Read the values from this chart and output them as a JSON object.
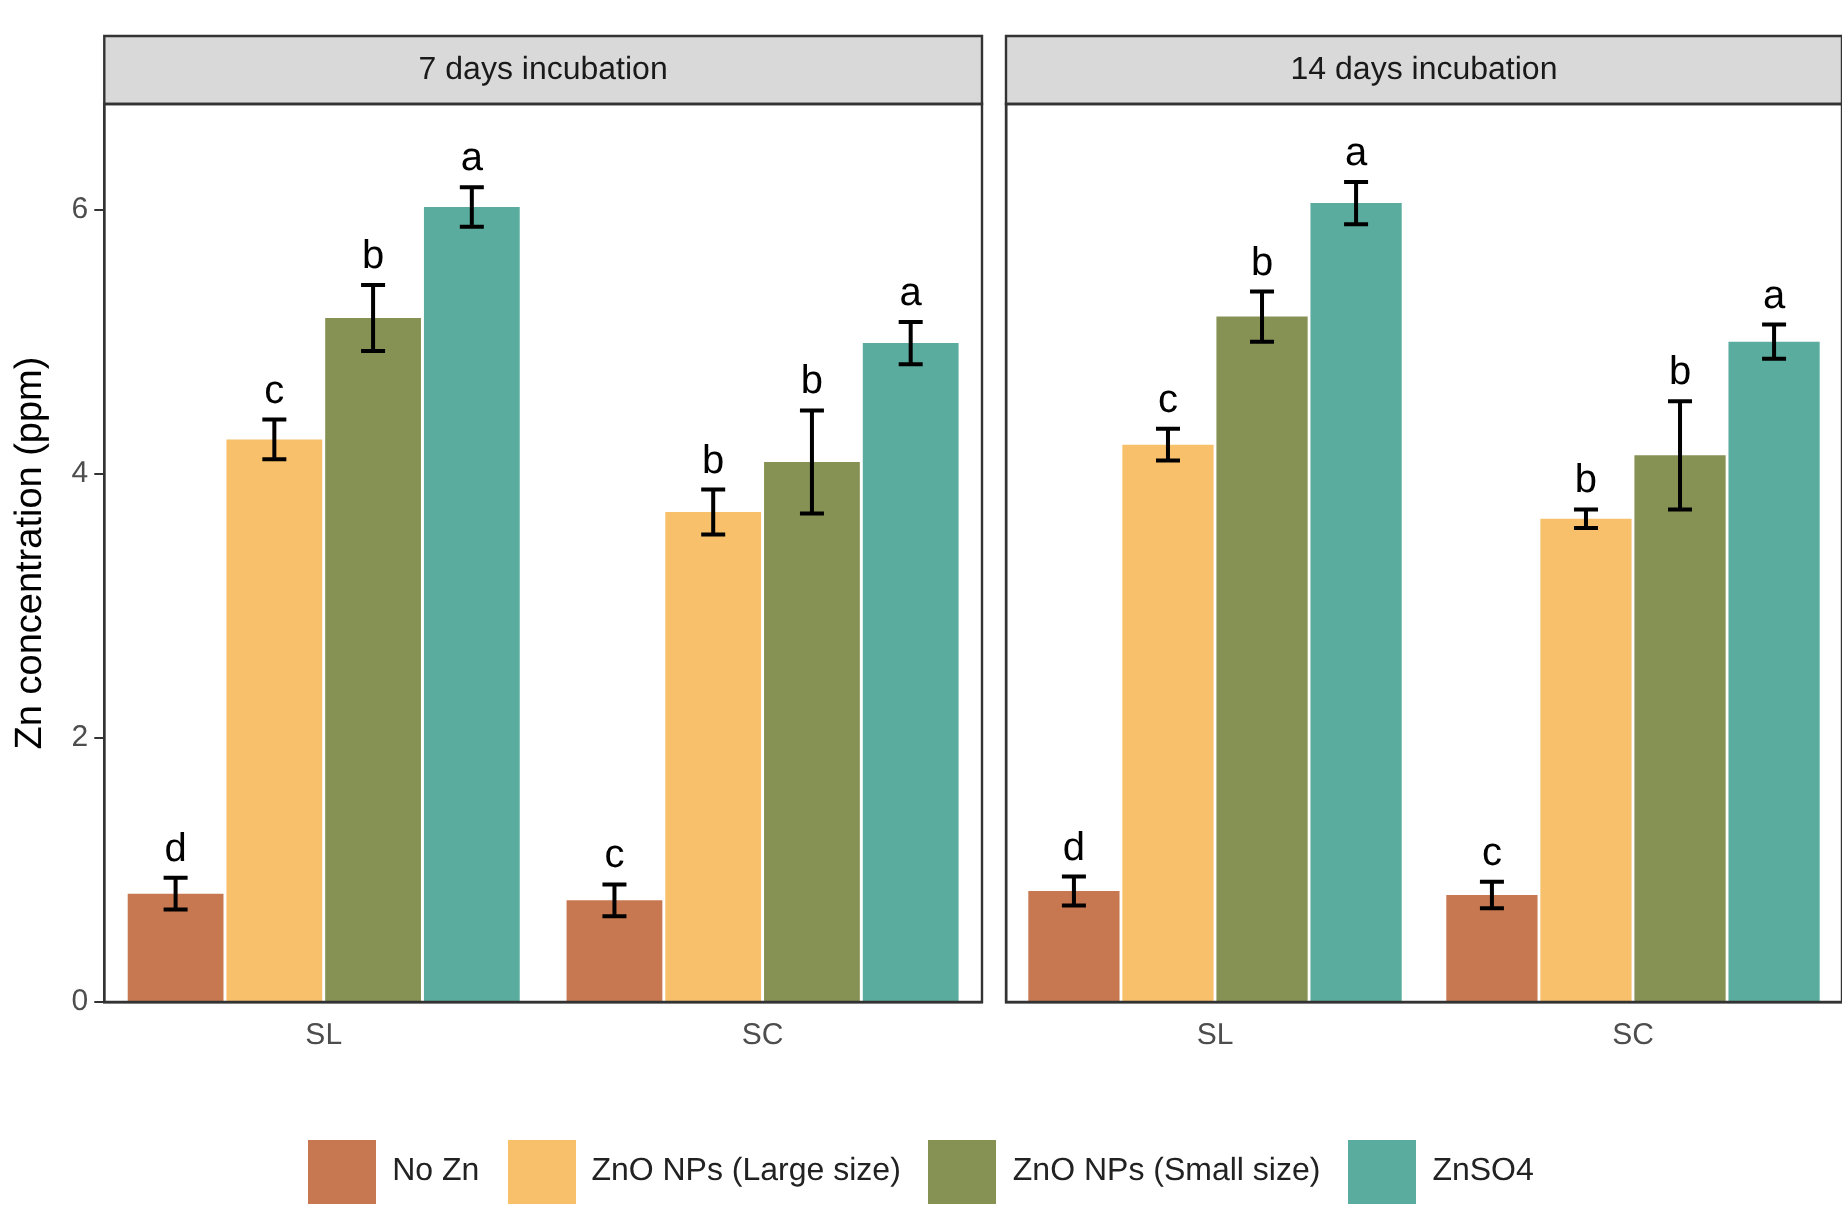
{
  "chart_data": [
    {
      "type": "bar",
      "title": "7 days incubation",
      "ylabel": "Zn concentration (ppm)",
      "categories": [
        "SL",
        "SC"
      ],
      "ylim": [
        0,
        6.8
      ],
      "yticks": [
        0,
        2,
        4,
        6
      ],
      "grid": false,
      "legend": "bottom",
      "series": [
        {
          "name": "No Zn",
          "color": "#c87850",
          "values": [
            0.82,
            0.77
          ],
          "errors": [
            0.12,
            0.12
          ],
          "value_labels": [
            "d",
            "c"
          ]
        },
        {
          "name": "ZnO NPs (Large size)",
          "color": "#f8c06a",
          "values": [
            4.26,
            3.71
          ],
          "errors": [
            0.15,
            0.17
          ],
          "value_labels": [
            "c",
            "b"
          ]
        },
        {
          "name": "ZnO NPs (Small size)",
          "color": "#869254",
          "values": [
            5.18,
            4.09
          ],
          "errors": [
            0.25,
            0.39
          ],
          "value_labels": [
            "b",
            "b"
          ]
        },
        {
          "name": "ZnSO4",
          "color": "#5aac9f",
          "values": [
            6.02,
            4.99
          ],
          "errors": [
            0.15,
            0.16
          ],
          "value_labels": [
            "a",
            "a"
          ]
        }
      ]
    },
    {
      "type": "bar",
      "title": "14 days incubation",
      "categories": [
        "SL",
        "SC"
      ],
      "ylim": [
        0,
        6.8
      ],
      "tick_labels": "x",
      "grid": false,
      "series": [
        {
          "color": "#c87850",
          "values": [
            0.84,
            0.81
          ],
          "errors": [
            0.11,
            0.1
          ],
          "value_labels": [
            "d",
            "c"
          ]
        },
        {
          "color": "#f8c06a",
          "values": [
            4.22,
            3.66
          ],
          "errors": [
            0.12,
            0.07
          ],
          "value_labels": [
            "c",
            "b"
          ]
        },
        {
          "color": "#869254",
          "values": [
            5.19,
            4.14
          ],
          "errors": [
            0.19,
            0.41
          ],
          "value_labels": [
            "b",
            "b"
          ]
        },
        {
          "color": "#5aac9f",
          "values": [
            6.05,
            5.0
          ],
          "errors": [
            0.16,
            0.13
          ],
          "value_labels": [
            "a",
            "a"
          ]
        }
      ]
    }
  ]
}
